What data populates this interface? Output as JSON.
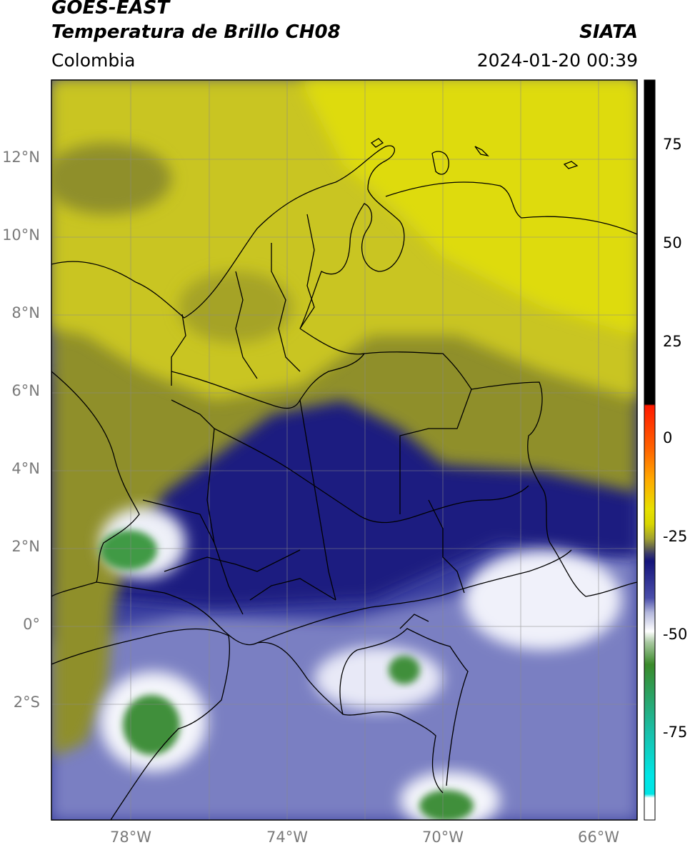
{
  "header": {
    "line1": "GOES-EAST",
    "line2": "Temperatura de Brillo CH08",
    "region": "Colombia",
    "org": "SIATA",
    "datetime": "2024-01-20 00:39"
  },
  "axes": {
    "lat_labels": [
      "12°N",
      "10°N",
      "8°N",
      "6°N",
      "4°N",
      "2°N",
      "0°",
      "2°S"
    ],
    "lon_labels": [
      "78°W",
      "74°W",
      "70°W",
      "66°W"
    ]
  },
  "colorbar": {
    "ticks": [
      "75",
      "50",
      "25",
      "0",
      "-25",
      "-50",
      "-75"
    ],
    "colors": {
      "black": "#000000",
      "red": "#ff1a00",
      "orange": "#ff9900",
      "yellow": "#e7e000",
      "olive": "#8a8a2a",
      "navy": "#14147a",
      "blue": "#4a4eaa",
      "lavender": "#b4b8dc",
      "white": "#ffffff",
      "green": "#3a8a2a",
      "teal": "#1abfa8",
      "cyan": "#00e5e5"
    }
  },
  "colors": {
    "yellow_cloudfree": "#d4d014",
    "olive_land": "#9a9a28",
    "navy_moist": "#1c1f80",
    "blue_moist": "#3a3f9e",
    "white_cold": "#f2f4fb",
    "green_convective": "#3f8f3a"
  }
}
